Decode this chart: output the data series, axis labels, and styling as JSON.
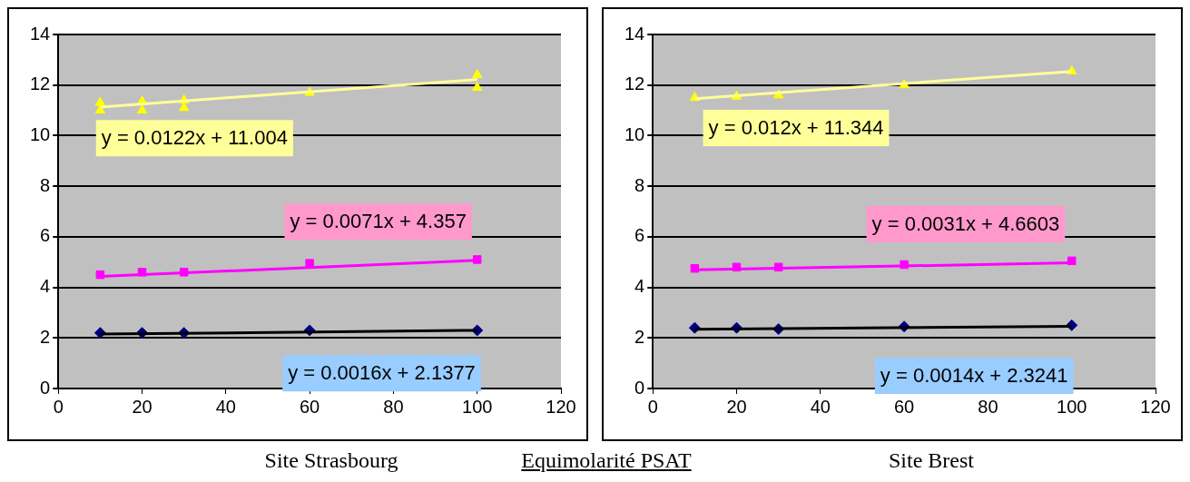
{
  "chart_data": [
    {
      "type": "scatter",
      "title": "Site Strasbourg",
      "annotations": [
        "Equimolarité PSAT"
      ],
      "xlim": [
        0,
        120
      ],
      "xticks": [
        0,
        20,
        40,
        60,
        80,
        100,
        120
      ],
      "ylim": [
        0,
        14
      ],
      "yticks": [
        0,
        2,
        4,
        6,
        8,
        10,
        12,
        14
      ],
      "grid": "y",
      "series": [
        {
          "type": "scatter",
          "marker": "triangle",
          "color": "#ffff00",
          "x": [
            10,
            10,
            20,
            20,
            30,
            30,
            60,
            100,
            100
          ],
          "values": [
            11.3,
            11.0,
            11.35,
            11.0,
            11.4,
            11.1,
            11.7,
            12.4,
            11.9
          ]
        },
        {
          "type": "line",
          "marker": "none",
          "name": "y = 0.0122x + 11.004",
          "color": "#ffff99",
          "x": [
            10,
            100
          ],
          "values": [
            11.13,
            12.22
          ]
        },
        {
          "type": "scatter",
          "marker": "square",
          "color": "#ff00ff",
          "x": [
            10,
            20,
            30,
            60,
            100
          ],
          "values": [
            4.5,
            4.6,
            4.6,
            4.95,
            5.1
          ]
        },
        {
          "type": "line",
          "marker": "none",
          "name": "y = 0.0071x + 4.357",
          "color": "#ff00ff",
          "x": [
            10,
            100
          ],
          "values": [
            4.43,
            5.07
          ]
        },
        {
          "type": "scatter",
          "marker": "diamond",
          "color": "#000080",
          "x": [
            10,
            20,
            30,
            60,
            100
          ],
          "values": [
            2.2,
            2.2,
            2.2,
            2.3,
            2.3
          ]
        },
        {
          "type": "line",
          "marker": "none",
          "name": "y = 0.0016x + 2.1377",
          "color": "#000000",
          "x": [
            10,
            100
          ],
          "values": [
            2.15,
            2.3
          ]
        }
      ]
    },
    {
      "type": "scatter",
      "title": "Site Brest",
      "xlim": [
        0,
        120
      ],
      "xticks": [
        0,
        20,
        40,
        60,
        80,
        100,
        120
      ],
      "ylim": [
        0,
        14
      ],
      "yticks": [
        0,
        2,
        4,
        6,
        8,
        10,
        12,
        14
      ],
      "grid": "y",
      "series": [
        {
          "type": "scatter",
          "marker": "triangle",
          "color": "#ffff00",
          "x": [
            10,
            20,
            30,
            60,
            100
          ],
          "values": [
            11.5,
            11.55,
            11.6,
            12.0,
            12.55
          ]
        },
        {
          "type": "line",
          "marker": "none",
          "name": "y = 0.012x + 11.344",
          "color": "#ffff99",
          "x": [
            10,
            100
          ],
          "values": [
            11.46,
            12.54
          ]
        },
        {
          "type": "scatter",
          "marker": "square",
          "color": "#ff00ff",
          "x": [
            10,
            20,
            30,
            60,
            100
          ],
          "values": [
            4.75,
            4.8,
            4.8,
            4.9,
            5.05
          ]
        },
        {
          "type": "line",
          "marker": "none",
          "name": "y = 0.0031x + 4.6603",
          "color": "#ff00ff",
          "x": [
            10,
            100
          ],
          "values": [
            4.69,
            4.97
          ]
        },
        {
          "type": "scatter",
          "marker": "diamond",
          "color": "#000080",
          "x": [
            10,
            20,
            30,
            60,
            100
          ],
          "values": [
            2.4,
            2.4,
            2.35,
            2.45,
            2.5
          ]
        },
        {
          "type": "line",
          "marker": "none",
          "name": "y = 0.0014x + 2.3241",
          "color": "#000000",
          "x": [
            10,
            100
          ],
          "values": [
            2.34,
            2.46
          ]
        }
      ]
    }
  ]
}
